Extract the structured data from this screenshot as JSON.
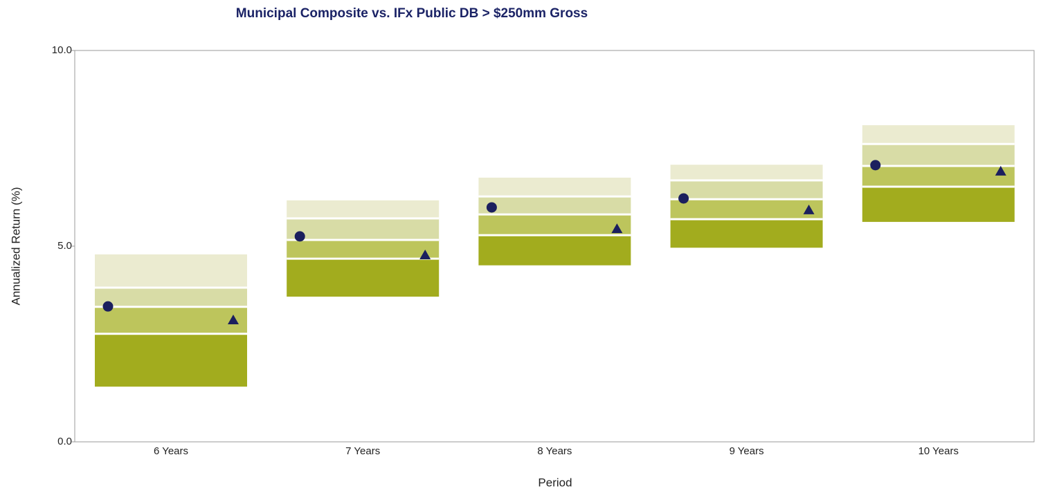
{
  "chart_data": {
    "type": "floating_range",
    "title": "Municipal Composite vs. IFx Public DB > $250mm Gross",
    "x_label": "Period",
    "y_label": "Annualized Return (%)",
    "categories": [
      "6 Years",
      "7 Years",
      "8 Years",
      "9 Years",
      "10 Years"
    ],
    "ranges": {
      "colors": [
        "#ebebd0",
        "#d8dca6",
        "#bdc55c",
        "#a2ac1e"
      ],
      "high": [
        4.79,
        6.17,
        6.75,
        7.08,
        8.09
      ],
      "upper": [
        3.94,
        5.71,
        6.27,
        6.68,
        7.61
      ],
      "median": [
        3.45,
        5.16,
        5.81,
        6.2,
        7.05
      ],
      "lower": [
        2.76,
        4.68,
        5.28,
        5.69,
        6.52
      ],
      "low": [
        1.41,
        3.71,
        4.51,
        4.96,
        5.62
      ]
    },
    "series": [
      {
        "marker": "circle",
        "color": "#1b1f5e",
        "values": [
          3.46,
          5.25,
          5.99,
          6.22,
          7.07
        ]
      },
      {
        "marker": "triangle",
        "color": "#1b1f5e",
        "values": [
          3.11,
          4.77,
          5.44,
          5.92,
          6.91
        ]
      }
    ],
    "ylim": [
      0,
      10
    ],
    "yticks": [
      {
        "value": 0,
        "label": "0.0"
      },
      {
        "value": 5,
        "label": "5.0"
      },
      {
        "value": 10,
        "label": "10.0"
      }
    ],
    "grid": false
  }
}
